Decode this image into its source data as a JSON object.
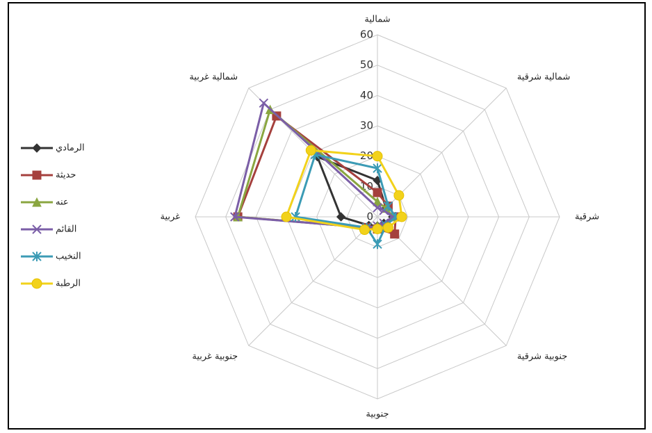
{
  "chart_data": {
    "type": "radar",
    "categories": [
      "شمالية",
      "شمالية شرقية",
      "شرقية",
      "جنوبية شرقية",
      "جنوبية",
      "جنوبية غربية",
      "غربية",
      "شمالية غربية"
    ],
    "ylim": [
      0,
      60
    ],
    "yticks": [
      0,
      10,
      20,
      30,
      40,
      50,
      60
    ],
    "grid": true,
    "legend": "left",
    "series": [
      {
        "name": "الرمادي",
        "color": "#333333",
        "marker": "diamond",
        "values": [
          12,
          4,
          5,
          3,
          3,
          4,
          12,
          28
        ]
      },
      {
        "name": "حديثة",
        "color": "#a5403d",
        "marker": "square",
        "values": [
          8,
          5,
          6,
          8,
          4,
          5,
          46,
          47
        ]
      },
      {
        "name": "عنه",
        "color": "#8aa640",
        "marker": "triangle",
        "values": [
          5,
          4,
          5,
          4,
          3,
          5,
          46,
          50
        ]
      },
      {
        "name": "القائم",
        "color": "#7b5ea7",
        "marker": "x",
        "values": [
          3,
          3,
          5,
          3,
          3,
          5,
          47,
          53
        ]
      },
      {
        "name": "النخيب",
        "color": "#3b9bb5",
        "marker": "star",
        "values": [
          16,
          5,
          6,
          4,
          9,
          5,
          27,
          29
        ]
      },
      {
        "name": "الرطبة",
        "color": "#f2d21b",
        "marker": "circle",
        "values": [
          20,
          10,
          8,
          5,
          4,
          6,
          30,
          31
        ]
      }
    ]
  }
}
